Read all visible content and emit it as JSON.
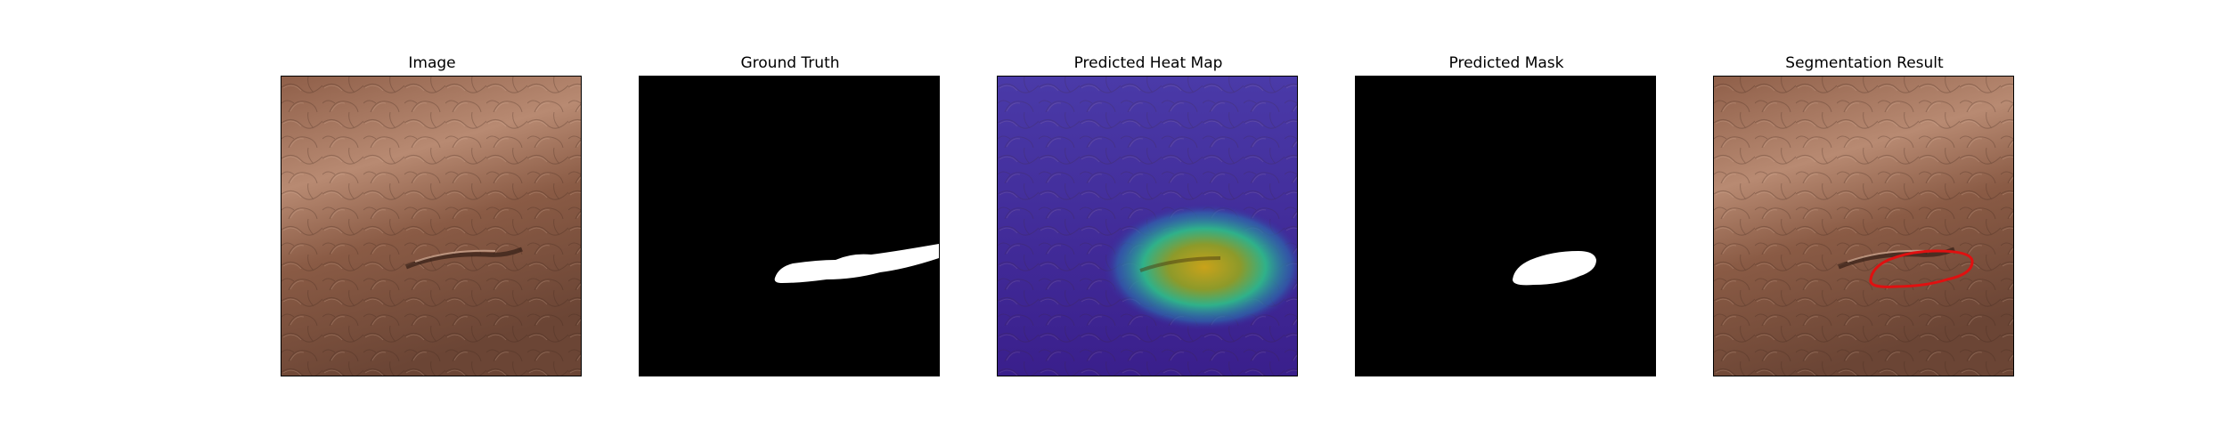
{
  "figure": {
    "panels": [
      {
        "title": "Image"
      },
      {
        "title": "Ground Truth"
      },
      {
        "title": "Predicted Heat Map"
      },
      {
        "title": "Predicted Mask"
      },
      {
        "title": "Segmentation Result"
      }
    ]
  },
  "colors": {
    "background": "#ffffff",
    "leather_light": "#b98a70",
    "leather_dark": "#6a4636",
    "mask_fg": "#ffffff",
    "mask_bg": "#000000",
    "heat_cold": "#3b1f9a",
    "heat_hot": "#c9a21a",
    "contour": "#e01010"
  }
}
